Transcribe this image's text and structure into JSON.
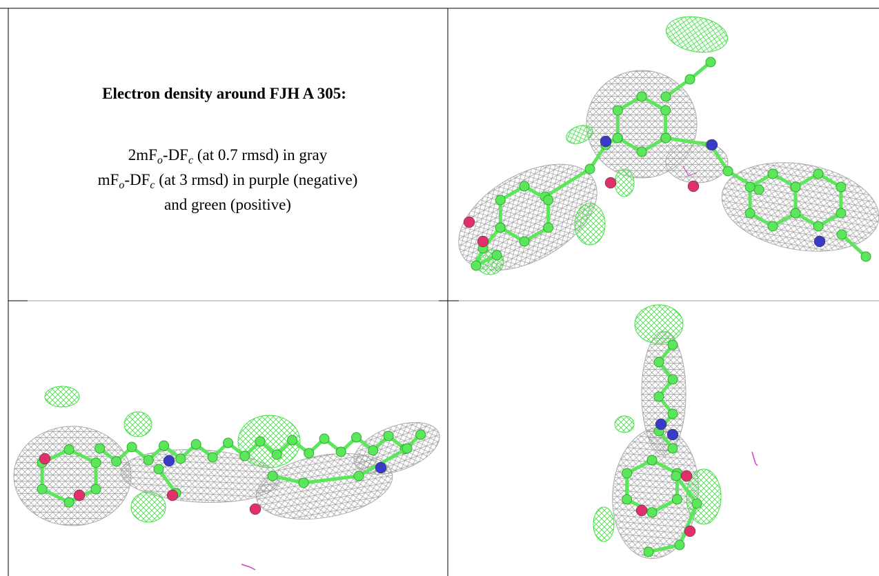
{
  "title": "Electron density around FJH A 305:",
  "lines": [
    [
      "2mF",
      "o",
      "-DF",
      "c",
      " (at 0.7 rmsd) in gray"
    ],
    [
      "mF",
      "o",
      "-DF",
      "c",
      " (at 3 rmsd) in purple (negative)"
    ],
    [
      "and green (positive)"
    ]
  ]
}
